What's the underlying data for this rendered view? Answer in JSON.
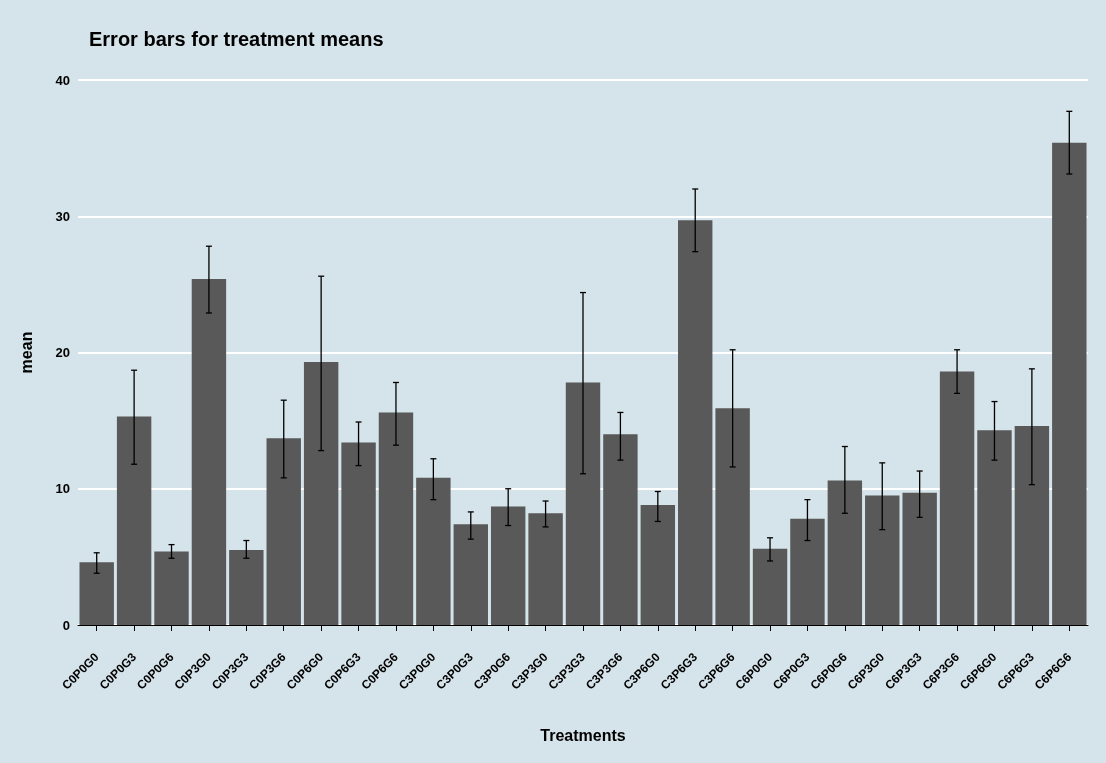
{
  "chart_data": {
    "type": "bar",
    "title": "Error bars for treatment means",
    "xlabel": "Treatments",
    "ylabel": "mean",
    "categories": [
      "C0P0G0",
      "C0P0G3",
      "C0P0G6",
      "C0P3G0",
      "C0P3G3",
      "C0P3G6",
      "C0P6G0",
      "C0P6G3",
      "C0P6G6",
      "C3P0G0",
      "C3P0G3",
      "C3P0G6",
      "C3P3G0",
      "C3P3G3",
      "C3P3G6",
      "C3P6G0",
      "C3P6G3",
      "C3P6G6",
      "C6P0G0",
      "C6P0G3",
      "C6P0G6",
      "C6P3G0",
      "C6P3G3",
      "C6P3G6",
      "C6P6G0",
      "C6P6G3",
      "C6P6G6"
    ],
    "values": [
      4.6,
      15.3,
      5.4,
      25.4,
      5.5,
      13.7,
      19.3,
      13.4,
      15.6,
      10.8,
      7.4,
      8.7,
      8.2,
      17.8,
      14.0,
      8.8,
      29.7,
      15.9,
      5.6,
      7.8,
      10.6,
      9.5,
      9.7,
      18.6,
      14.3,
      14.6,
      35.4
    ],
    "errors": [
      [
        3.8,
        5.3
      ],
      [
        11.8,
        18.7
      ],
      [
        4.9,
        5.9
      ],
      [
        22.9,
        27.8
      ],
      [
        4.9,
        6.2
      ],
      [
        10.8,
        16.5
      ],
      [
        12.8,
        25.6
      ],
      [
        11.7,
        14.9
      ],
      [
        13.2,
        17.8
      ],
      [
        9.2,
        12.2
      ],
      [
        6.3,
        8.3
      ],
      [
        7.3,
        10.0
      ],
      [
        7.2,
        9.1
      ],
      [
        11.1,
        24.4
      ],
      [
        12.1,
        15.6
      ],
      [
        7.6,
        9.8
      ],
      [
        27.4,
        32.0
      ],
      [
        11.6,
        20.2
      ],
      [
        4.7,
        6.4
      ],
      [
        6.2,
        9.2
      ],
      [
        8.2,
        13.1
      ],
      [
        7.0,
        11.9
      ],
      [
        7.9,
        11.3
      ],
      [
        17.0,
        20.2
      ],
      [
        12.1,
        16.4
      ],
      [
        10.3,
        18.8
      ],
      [
        33.1,
        37.7
      ]
    ],
    "color": "#595959",
    "ylim": [
      0,
      40
    ],
    "yticks": [
      0,
      10,
      20,
      30,
      40
    ],
    "grid": "y"
  }
}
